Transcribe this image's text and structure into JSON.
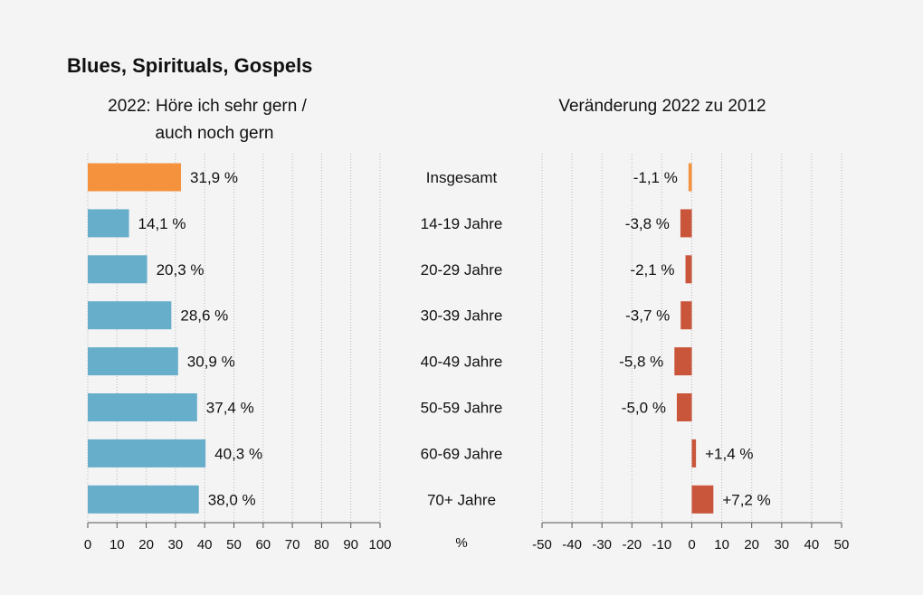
{
  "chart_data": [
    {
      "type": "bar",
      "orientation": "horizontal",
      "title": "Blues, Spirituals, Gospels",
      "subtitle": [
        "2022: Höre ich sehr gern /",
        "auch noch gern"
      ],
      "categories": [
        "Insgesamt",
        "14-19 Jahre",
        "20-29 Jahre",
        "30-39 Jahre",
        "40-49 Jahre",
        "50-59 Jahre",
        "60-69 Jahre",
        "70+ Jahre"
      ],
      "values": [
        31.9,
        14.1,
        20.3,
        28.6,
        30.9,
        37.4,
        40.3,
        38.0
      ],
      "data_labels": [
        "31,9 %",
        "14,1 %",
        "20,3 %",
        "28,6 %",
        "30,9 %",
        "37,4 %",
        "40,3 %",
        "38,0 %"
      ],
      "xlim": [
        0,
        100
      ],
      "xticks": [
        "0",
        "10",
        "20",
        "30",
        "40",
        "50",
        "60",
        "70",
        "80",
        "90",
        "100"
      ],
      "xlabel": "%",
      "grid": true,
      "colors": {
        "total": "#f5923e",
        "groups": "#67aecb"
      }
    },
    {
      "type": "bar",
      "orientation": "horizontal",
      "subtitle": "Veränderung 2022 zu 2012",
      "categories": [
        "Insgesamt",
        "14-19 Jahre",
        "20-29 Jahre",
        "30-39 Jahre",
        "40-49 Jahre",
        "50-59 Jahre",
        "60-69 Jahre",
        "70+ Jahre"
      ],
      "values": [
        -1.1,
        -3.8,
        -2.1,
        -3.7,
        -5.8,
        -5.0,
        1.4,
        7.2
      ],
      "data_labels": [
        "-1,1 %",
        "-3,8 %",
        "-2,1 %",
        "-3,7 %",
        "-5,8 %",
        "-5,0 %",
        "+1,4 %",
        "+7,2 %"
      ],
      "xlim": [
        -50,
        50
      ],
      "xticks": [
        "-50",
        "-40",
        "-30",
        "-20",
        "-10",
        "0",
        "10",
        "20",
        "30",
        "40",
        "50"
      ],
      "grid": true,
      "colors": {
        "total": "#f5923e",
        "groups": "#c9553a"
      }
    }
  ]
}
